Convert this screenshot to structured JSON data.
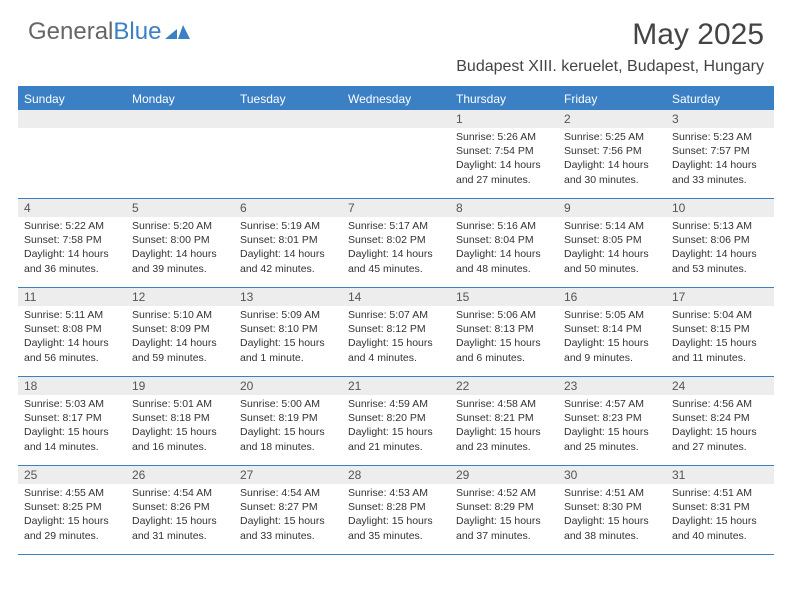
{
  "logo": {
    "text1": "General",
    "text2": "Blue"
  },
  "title": "May 2025",
  "location": "Budapest XIII. keruelet, Budapest, Hungary",
  "weekdays": [
    "Sunday",
    "Monday",
    "Tuesday",
    "Wednesday",
    "Thursday",
    "Friday",
    "Saturday"
  ],
  "colors": {
    "header_bar": "#3b7fc4",
    "daynum_bg": "#ededed",
    "text": "#333333"
  },
  "weeks": [
    [
      null,
      null,
      null,
      null,
      {
        "n": "1",
        "sr": "5:26 AM",
        "ss": "7:54 PM",
        "dl": "14 hours and 27 minutes."
      },
      {
        "n": "2",
        "sr": "5:25 AM",
        "ss": "7:56 PM",
        "dl": "14 hours and 30 minutes."
      },
      {
        "n": "3",
        "sr": "5:23 AM",
        "ss": "7:57 PM",
        "dl": "14 hours and 33 minutes."
      }
    ],
    [
      {
        "n": "4",
        "sr": "5:22 AM",
        "ss": "7:58 PM",
        "dl": "14 hours and 36 minutes."
      },
      {
        "n": "5",
        "sr": "5:20 AM",
        "ss": "8:00 PM",
        "dl": "14 hours and 39 minutes."
      },
      {
        "n": "6",
        "sr": "5:19 AM",
        "ss": "8:01 PM",
        "dl": "14 hours and 42 minutes."
      },
      {
        "n": "7",
        "sr": "5:17 AM",
        "ss": "8:02 PM",
        "dl": "14 hours and 45 minutes."
      },
      {
        "n": "8",
        "sr": "5:16 AM",
        "ss": "8:04 PM",
        "dl": "14 hours and 48 minutes."
      },
      {
        "n": "9",
        "sr": "5:14 AM",
        "ss": "8:05 PM",
        "dl": "14 hours and 50 minutes."
      },
      {
        "n": "10",
        "sr": "5:13 AM",
        "ss": "8:06 PM",
        "dl": "14 hours and 53 minutes."
      }
    ],
    [
      {
        "n": "11",
        "sr": "5:11 AM",
        "ss": "8:08 PM",
        "dl": "14 hours and 56 minutes."
      },
      {
        "n": "12",
        "sr": "5:10 AM",
        "ss": "8:09 PM",
        "dl": "14 hours and 59 minutes."
      },
      {
        "n": "13",
        "sr": "5:09 AM",
        "ss": "8:10 PM",
        "dl": "15 hours and 1 minute."
      },
      {
        "n": "14",
        "sr": "5:07 AM",
        "ss": "8:12 PM",
        "dl": "15 hours and 4 minutes."
      },
      {
        "n": "15",
        "sr": "5:06 AM",
        "ss": "8:13 PM",
        "dl": "15 hours and 6 minutes."
      },
      {
        "n": "16",
        "sr": "5:05 AM",
        "ss": "8:14 PM",
        "dl": "15 hours and 9 minutes."
      },
      {
        "n": "17",
        "sr": "5:04 AM",
        "ss": "8:15 PM",
        "dl": "15 hours and 11 minutes."
      }
    ],
    [
      {
        "n": "18",
        "sr": "5:03 AM",
        "ss": "8:17 PM",
        "dl": "15 hours and 14 minutes."
      },
      {
        "n": "19",
        "sr": "5:01 AM",
        "ss": "8:18 PM",
        "dl": "15 hours and 16 minutes."
      },
      {
        "n": "20",
        "sr": "5:00 AM",
        "ss": "8:19 PM",
        "dl": "15 hours and 18 minutes."
      },
      {
        "n": "21",
        "sr": "4:59 AM",
        "ss": "8:20 PM",
        "dl": "15 hours and 21 minutes."
      },
      {
        "n": "22",
        "sr": "4:58 AM",
        "ss": "8:21 PM",
        "dl": "15 hours and 23 minutes."
      },
      {
        "n": "23",
        "sr": "4:57 AM",
        "ss": "8:23 PM",
        "dl": "15 hours and 25 minutes."
      },
      {
        "n": "24",
        "sr": "4:56 AM",
        "ss": "8:24 PM",
        "dl": "15 hours and 27 minutes."
      }
    ],
    [
      {
        "n": "25",
        "sr": "4:55 AM",
        "ss": "8:25 PM",
        "dl": "15 hours and 29 minutes."
      },
      {
        "n": "26",
        "sr": "4:54 AM",
        "ss": "8:26 PM",
        "dl": "15 hours and 31 minutes."
      },
      {
        "n": "27",
        "sr": "4:54 AM",
        "ss": "8:27 PM",
        "dl": "15 hours and 33 minutes."
      },
      {
        "n": "28",
        "sr": "4:53 AM",
        "ss": "8:28 PM",
        "dl": "15 hours and 35 minutes."
      },
      {
        "n": "29",
        "sr": "4:52 AM",
        "ss": "8:29 PM",
        "dl": "15 hours and 37 minutes."
      },
      {
        "n": "30",
        "sr": "4:51 AM",
        "ss": "8:30 PM",
        "dl": "15 hours and 38 minutes."
      },
      {
        "n": "31",
        "sr": "4:51 AM",
        "ss": "8:31 PM",
        "dl": "15 hours and 40 minutes."
      }
    ]
  ],
  "labels": {
    "sunrise": "Sunrise: ",
    "sunset": "Sunset: ",
    "daylight": "Daylight: "
  }
}
